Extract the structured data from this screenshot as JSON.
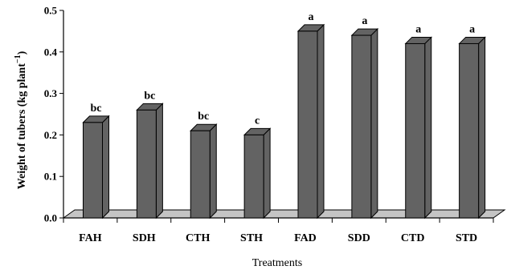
{
  "chart_data": {
    "type": "bar",
    "style": "3d-column",
    "categories": [
      "FAH",
      "SDH",
      "CTH",
      "STH",
      "FAD",
      "SDD",
      "CTD",
      "STD"
    ],
    "values": [
      0.23,
      0.26,
      0.21,
      0.2,
      0.45,
      0.44,
      0.42,
      0.42
    ],
    "significance_letters": [
      "bc",
      "bc",
      "bc",
      "c",
      "a",
      "a",
      "a",
      "a"
    ],
    "xlabel": "Treatments",
    "ylabel": {
      "main": "Weight of tubers (kg plant",
      "sup": "−1",
      "close": ")"
    },
    "ylim": [
      0.0,
      0.5
    ],
    "yticks": [
      "0.0",
      "0.1",
      "0.2",
      "0.3",
      "0.4",
      "0.5"
    ],
    "grid": false,
    "legend": "none",
    "bar_color": "#636363",
    "floor_color": "#c4c4c4"
  }
}
